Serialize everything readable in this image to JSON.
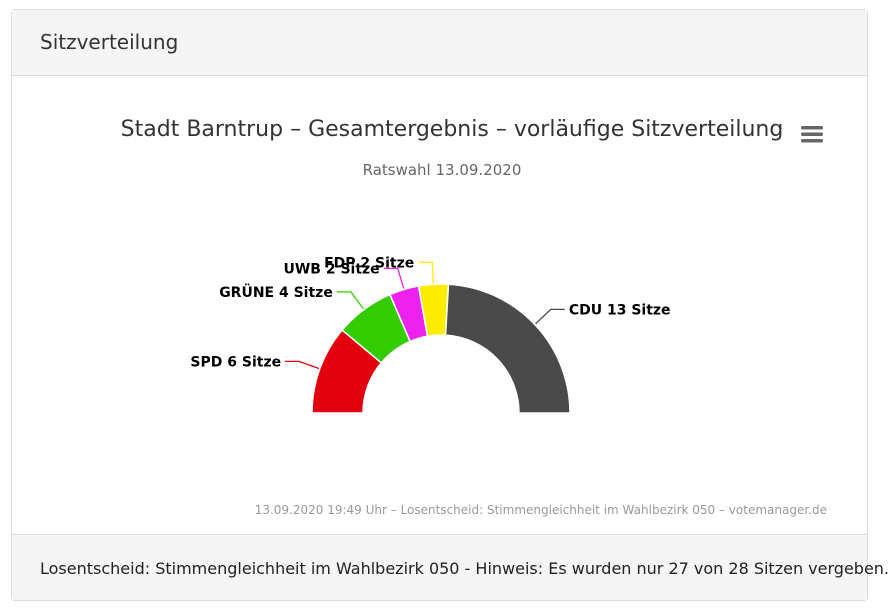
{
  "header": {
    "title": "Sitzverteilung"
  },
  "footer": {
    "text": "Losentscheid: Stimmengleichheit im Wahlbezirk 050 - Hinweis: Es wurden nur 27 von 28 Sitzen vergeben."
  },
  "menu": {
    "icon": "hamburger-menu-icon"
  },
  "chart_data": {
    "type": "pie",
    "variant": "semicircle-donut",
    "title": "Stadt Barntrup – Gesamtergebnis – vorläufige Sitzverteilung",
    "subtitle": "Ratswahl 13.09.2020",
    "credits": "13.09.2020 19:49 Uhr – Losentscheid: Stimmengleichheit im Wahlbezirk 050 – votemanager.de",
    "slices": [
      {
        "name": "SPD",
        "value": 6,
        "label": "SPD 6 Sitze",
        "color": "#e2000f"
      },
      {
        "name": "GRÜNE",
        "value": 4,
        "label": "GRÜNE 4 Sitze",
        "color": "#33cc00"
      },
      {
        "name": "UWB",
        "value": 2,
        "label": "UWB 2 Sitze",
        "color": "#ee22ee"
      },
      {
        "name": "FDP",
        "value": 2,
        "label": "FDP 2 Sitze",
        "color": "#ffed00"
      },
      {
        "name": "CDU",
        "value": 13,
        "label": "CDU 13 Sitze",
        "color": "#4a4a4a"
      }
    ]
  }
}
